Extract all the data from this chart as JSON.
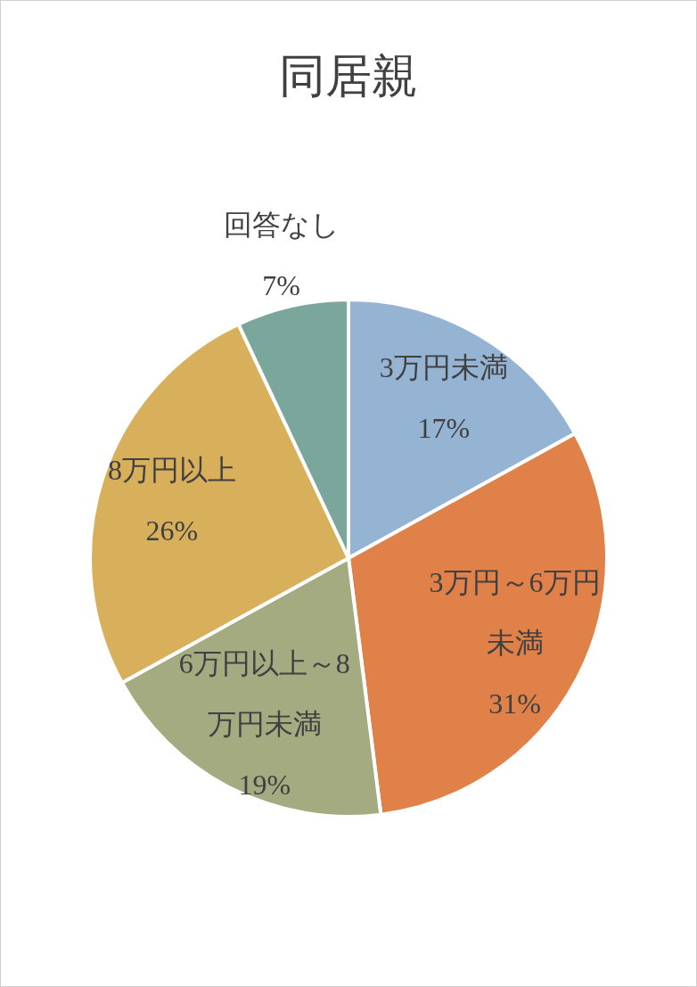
{
  "chart_data": {
    "type": "pie",
    "title": "同居親",
    "categories": [
      "3万円未満",
      "3万円～6万円未満",
      "6万円以上～8万円未満",
      "8万円以上",
      "回答なし"
    ],
    "values": [
      17,
      31,
      19,
      26,
      7
    ],
    "value_labels": [
      "17%",
      "31%",
      "19%",
      "26%",
      "7%"
    ],
    "colors": [
      "#95b3d3",
      "#df8149",
      "#a4ab80",
      "#d8b05c",
      "#7ba69b"
    ],
    "legend": false
  }
}
